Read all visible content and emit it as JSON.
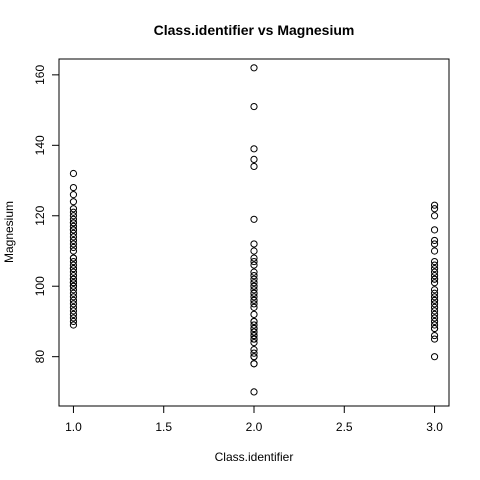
{
  "chart_data": {
    "type": "scatter",
    "title": "Class.identifier vs Magnesium",
    "xlabel": "Class.identifier",
    "ylabel": "Magnesium",
    "xlim": [
      0.92,
      3.08
    ],
    "ylim": [
      66,
      164.5
    ],
    "xticks": [
      1.0,
      1.5,
      2.0,
      2.5,
      3.0
    ],
    "xtick_labels": [
      "1.0",
      "1.5",
      "2.0",
      "2.5",
      "3.0"
    ],
    "yticks": [
      80,
      100,
      120,
      140,
      160
    ],
    "ytick_labels": [
      "80",
      "100",
      "120",
      "140",
      "160"
    ],
    "grid": false,
    "point_style": "open-circle",
    "series": [
      {
        "x": [
          1,
          1,
          1,
          1,
          1,
          1,
          1,
          1,
          1,
          1,
          1,
          1,
          1,
          1,
          1,
          1,
          1,
          1,
          1,
          1,
          1,
          1,
          1,
          1,
          1,
          1,
          1,
          1,
          1,
          1,
          1,
          1,
          1,
          1,
          1,
          1,
          1,
          1,
          1,
          1,
          1,
          1,
          1,
          1
        ],
        "y": [
          89,
          90,
          91,
          92,
          93,
          94,
          95,
          96,
          97,
          98,
          99,
          100,
          101,
          101,
          102,
          103,
          104,
          105,
          106,
          107,
          108,
          110,
          111,
          112,
          113,
          114,
          115,
          116,
          117,
          118,
          118,
          119,
          120,
          121,
          122,
          124,
          126,
          128,
          132,
          100,
          102,
          105,
          108,
          116
        ]
      },
      {
        "x": [
          2,
          2,
          2,
          2,
          2,
          2,
          2,
          2,
          2,
          2,
          2,
          2,
          2,
          2,
          2,
          2,
          2,
          2,
          2,
          2,
          2,
          2,
          2,
          2,
          2,
          2,
          2,
          2,
          2,
          2,
          2,
          2,
          2,
          2,
          2,
          2,
          2,
          2,
          2,
          2,
          2,
          2,
          2,
          2,
          2,
          2,
          2
        ],
        "y": [
          70,
          78,
          78,
          80,
          80,
          81,
          82,
          84,
          85,
          85,
          86,
          86,
          87,
          88,
          88,
          89,
          90,
          92,
          94,
          95,
          96,
          97,
          98,
          99,
          100,
          101,
          102,
          103,
          104,
          106,
          107,
          108,
          110,
          112,
          119,
          134,
          136,
          139,
          151,
          162,
          85,
          87,
          88,
          90,
          96,
          98,
          100
        ]
      },
      {
        "x": [
          3,
          3,
          3,
          3,
          3,
          3,
          3,
          3,
          3,
          3,
          3,
          3,
          3,
          3,
          3,
          3,
          3,
          3,
          3,
          3,
          3,
          3,
          3,
          3,
          3,
          3,
          3,
          3,
          3,
          3,
          3,
          3
        ],
        "y": [
          80,
          85,
          86,
          88,
          89,
          90,
          91,
          92,
          93,
          95,
          96,
          97,
          98,
          99,
          101,
          102,
          103,
          104,
          105,
          106,
          107,
          110,
          112,
          113,
          116,
          120,
          122,
          123,
          88,
          94,
          96,
          102
        ]
      }
    ]
  }
}
